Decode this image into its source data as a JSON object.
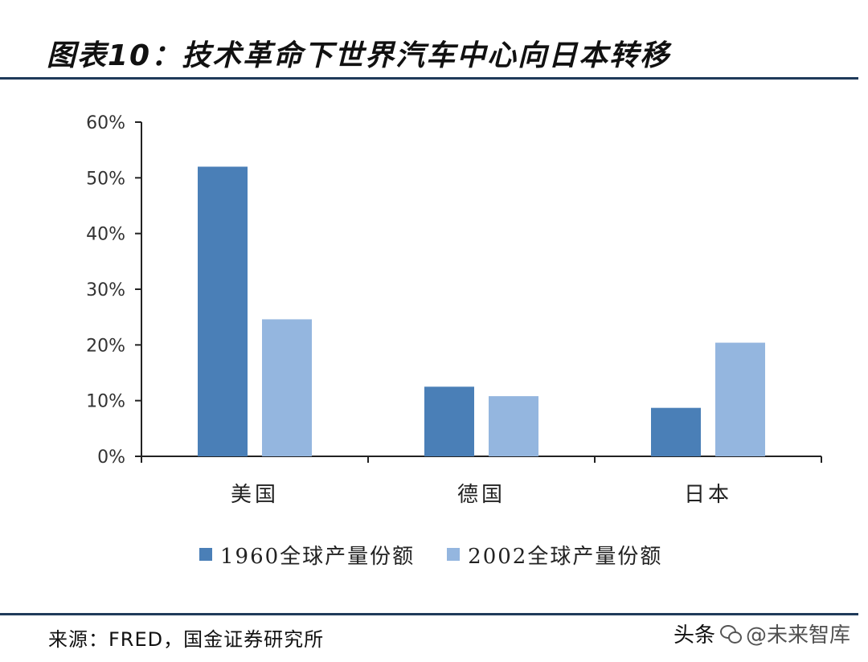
{
  "header": {
    "figure_title": "图表10：技术革命下世界汽车中心向日本转移"
  },
  "chart_data": {
    "type": "bar",
    "title": "",
    "xlabel": "",
    "ylabel": "",
    "categories": [
      "美国",
      "德国",
      "日本"
    ],
    "series": [
      {
        "name": "1960全球产量份额",
        "values": [
          52,
          12.5,
          8.7
        ],
        "color": "#4a7fb7"
      },
      {
        "name": "2002全球产量份额",
        "values": [
          24.6,
          10.8,
          20.4
        ],
        "color": "#94b6df"
      }
    ],
    "ylim": [
      0,
      60
    ],
    "yticks": [
      0,
      10,
      20,
      30,
      40,
      50,
      60
    ],
    "ytick_labels": [
      "0%",
      "10%",
      "20%",
      "30%",
      "40%",
      "50%",
      "60%"
    ],
    "grid": false,
    "legend_position": "bottom"
  },
  "footer": {
    "source": "来源：FRED，国金证券研究所",
    "watermark_prefix": "头条",
    "watermark_name": "@未来智库"
  }
}
